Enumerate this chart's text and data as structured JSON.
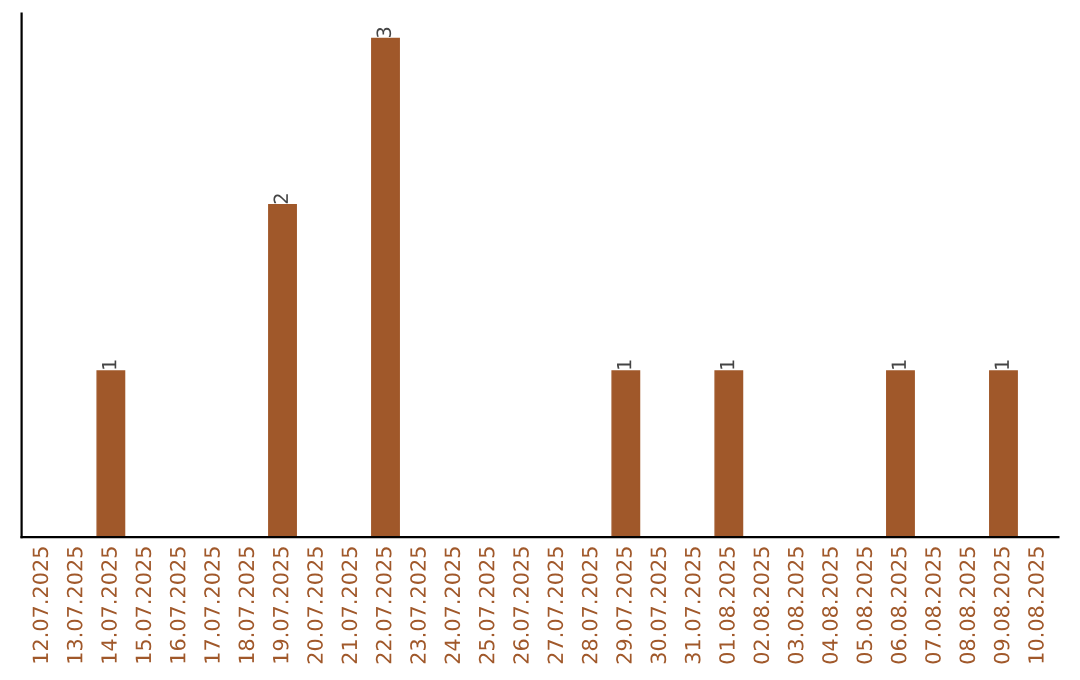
{
  "chart_data": {
    "type": "bar",
    "categories": [
      "12.07.2025",
      "13.07.2025",
      "14.07.2025",
      "15.07.2025",
      "16.07.2025",
      "17.07.2025",
      "18.07.2025",
      "19.07.2025",
      "20.07.2025",
      "21.07.2025",
      "22.07.2025",
      "23.07.2025",
      "24.07.2025",
      "25.07.2025",
      "26.07.2025",
      "27.07.2025",
      "28.07.2025",
      "29.07.2025",
      "30.07.2025",
      "31.07.2025",
      "01.08.2025",
      "02.08.2025",
      "03.08.2025",
      "04.08.2025",
      "05.08.2025",
      "06.08.2025",
      "07.08.2025",
      "08.08.2025",
      "09.08.2025",
      "10.08.2025"
    ],
    "values": [
      0,
      0,
      1,
      0,
      0,
      0,
      0,
      2,
      0,
      0,
      3,
      0,
      0,
      0,
      0,
      0,
      0,
      1,
      0,
      0,
      1,
      0,
      0,
      0,
      0,
      1,
      0,
      0,
      1,
      0
    ],
    "value_labels": [
      null,
      null,
      "1",
      null,
      null,
      null,
      null,
      "2",
      null,
      null,
      "3",
      null,
      null,
      null,
      null,
      null,
      null,
      "1",
      null,
      null,
      "1",
      null,
      null,
      null,
      null,
      "1",
      null,
      null,
      "1",
      null
    ],
    "color": "#a0582a",
    "tick_labels": "x",
    "grid": false,
    "legend": false
  }
}
